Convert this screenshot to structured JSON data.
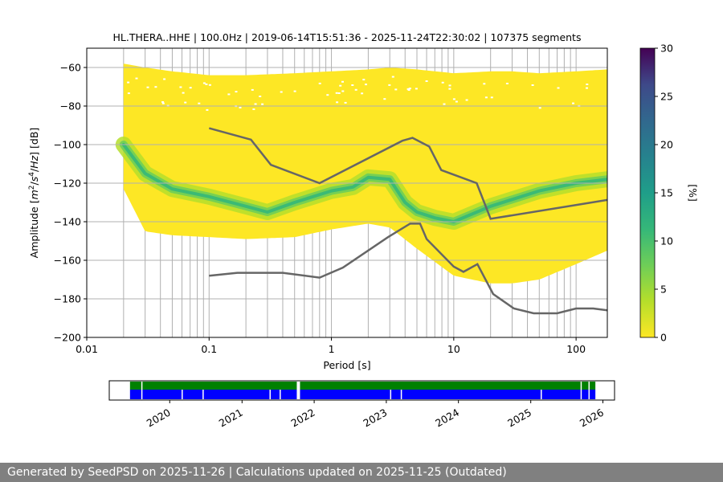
{
  "chart_data": [
    {
      "type": "heatmap",
      "title": "HL.THERA..HHE | 100.0Hz | 2019-06-14T15:51:36 - 2025-11-24T22:30:02 | 107375 segments",
      "xlabel": "Period [s]",
      "ylabel_parts": [
        "Amplitude [",
        "m",
        "2",
        "/",
        "s",
        "4",
        "/",
        "Hz",
        "] [dB]"
      ],
      "x_scale": "log",
      "xlim": [
        0.01,
        180
      ],
      "ylim": [
        -200,
        -50
      ],
      "x_ticks": [
        {
          "value": 0.01,
          "label": "0.01"
        },
        {
          "value": 0.1,
          "label": "0.1"
        },
        {
          "value": 1,
          "label": "1"
        },
        {
          "value": 10,
          "label": "10"
        },
        {
          "value": 100,
          "label": "100"
        }
      ],
      "y_ticks": [
        {
          "value": -60,
          "label": "−60"
        },
        {
          "value": -80,
          "label": "−80"
        },
        {
          "value": -100,
          "label": "−100"
        },
        {
          "value": -120,
          "label": "−120"
        },
        {
          "value": -140,
          "label": "−140"
        },
        {
          "value": -160,
          "label": "−160"
        },
        {
          "value": -180,
          "label": "−180"
        },
        {
          "value": -200,
          "label": "−200"
        }
      ],
      "grid": true,
      "vertical_gridlines_periods": [
        0.02,
        0.03,
        0.04,
        0.05,
        0.06,
        0.07,
        0.08,
        0.09,
        0.2,
        0.3,
        0.4,
        0.5,
        0.6,
        0.7,
        0.8,
        0.9,
        2,
        3,
        4,
        5,
        6,
        7,
        8,
        9,
        20,
        30,
        40,
        50,
        60,
        70,
        80,
        90
      ],
      "colorbar": {
        "label": "[%]",
        "range": [
          0,
          30
        ],
        "ticks": [
          {
            "value": 0,
            "label": "0"
          },
          {
            "value": 5,
            "label": "5"
          },
          {
            "value": 10,
            "label": "10"
          },
          {
            "value": 15,
            "label": "15"
          },
          {
            "value": 20,
            "label": "20"
          },
          {
            "value": 25,
            "label": "25"
          },
          {
            "value": 30,
            "label": "30"
          }
        ],
        "colormap": "viridis_reversed"
      },
      "density_envelope": {
        "periods": [
          0.02,
          0.03,
          0.05,
          0.1,
          0.2,
          0.5,
          1,
          2,
          3,
          5,
          10,
          20,
          30,
          50,
          100,
          180
        ],
        "upper_db": [
          -58,
          -60,
          -62,
          -64,
          -64,
          -63,
          -62,
          -61,
          -60,
          -61,
          -63,
          -62,
          -62,
          -63,
          -62,
          -61
        ],
        "lower_db": [
          -123,
          -145,
          -147,
          -148,
          -149,
          -148,
          -144,
          -141,
          -143,
          -154,
          -168,
          -172,
          -172,
          -170,
          -162,
          -155
        ]
      },
      "mode_ridge": {
        "periods": [
          0.02,
          0.03,
          0.05,
          0.1,
          0.2,
          0.3,
          0.5,
          1,
          1.5,
          2,
          3,
          4,
          5,
          7,
          10,
          20,
          50,
          100,
          180
        ],
        "db": [
          -100,
          -115,
          -123,
          -127,
          -132,
          -135,
          -130,
          -124,
          -122,
          -117,
          -118,
          -130,
          -135,
          -138,
          -140,
          -132,
          -124,
          -120,
          -118
        ]
      },
      "series": [
        {
          "periods": [
            0.1,
            0.22,
            0.32,
            0.8,
            3.8,
            4.6,
            6.3,
            7.9,
            15.4,
            20,
            180
          ],
          "db": [
            -91.5,
            -97.4,
            -110.5,
            -120,
            -98,
            -96.5,
            -101,
            -113.2,
            -120,
            -138.5,
            -128.7
          ]
        },
        {
          "periods": [
            0.1,
            0.17,
            0.4,
            0.8,
            1.24,
            2.9,
            4.4,
            5.3,
            6,
            10,
            12,
            15.6,
            21,
            31,
            45,
            70,
            100,
            138,
            180
          ],
          "db": [
            -168,
            -166.5,
            -166.5,
            -169,
            -163.8,
            -148,
            -141,
            -141,
            -149,
            -163.3,
            -166,
            -162,
            -177.5,
            -185,
            -187.5,
            -187.5,
            -185,
            -185,
            -185.9
          ]
        }
      ]
    },
    {
      "type": "timeline",
      "tick_labels": [
        {
          "year": 2020,
          "label": "2020"
        },
        {
          "year": 2021,
          "label": "2021"
        },
        {
          "year": 2022,
          "label": "2022"
        },
        {
          "year": 2023,
          "label": "2023"
        },
        {
          "year": 2024,
          "label": "2024"
        },
        {
          "year": 2025,
          "label": "2025"
        },
        {
          "year": 2026,
          "label": "2026"
        }
      ],
      "date_range": [
        "2019-03-01",
        "2026-03-01"
      ],
      "data_range": [
        "2019-06-14",
        "2025-11-24"
      ],
      "upper_band_color": "#008000",
      "lower_band_color": "#0000ff",
      "gaps": [
        {
          "date": "2019-08-10",
          "band": "both"
        },
        {
          "date": "2020-03-01",
          "band": "lower"
        },
        {
          "date": "2020-06-15",
          "band": "lower"
        },
        {
          "date": "2021-05-20",
          "band": "lower"
        },
        {
          "date": "2021-07-10",
          "band": "lower"
        },
        {
          "date": "2021-10-05",
          "band": "both",
          "wide": true
        },
        {
          "date": "2023-01-20",
          "band": "lower"
        },
        {
          "date": "2023-03-15",
          "band": "lower"
        },
        {
          "date": "2025-02-20",
          "band": "lower"
        },
        {
          "date": "2025-09-10",
          "band": "both"
        },
        {
          "date": "2025-10-20",
          "band": "both"
        }
      ]
    }
  ],
  "footer": {
    "text": "Generated by SeedPSD on 2025-11-26 | Calculations updated on 2025-11-25 (Outdated)"
  },
  "colors": {
    "reference_line": "#666666",
    "grid": "#b0b0b0",
    "footer_bg": "#808080"
  }
}
